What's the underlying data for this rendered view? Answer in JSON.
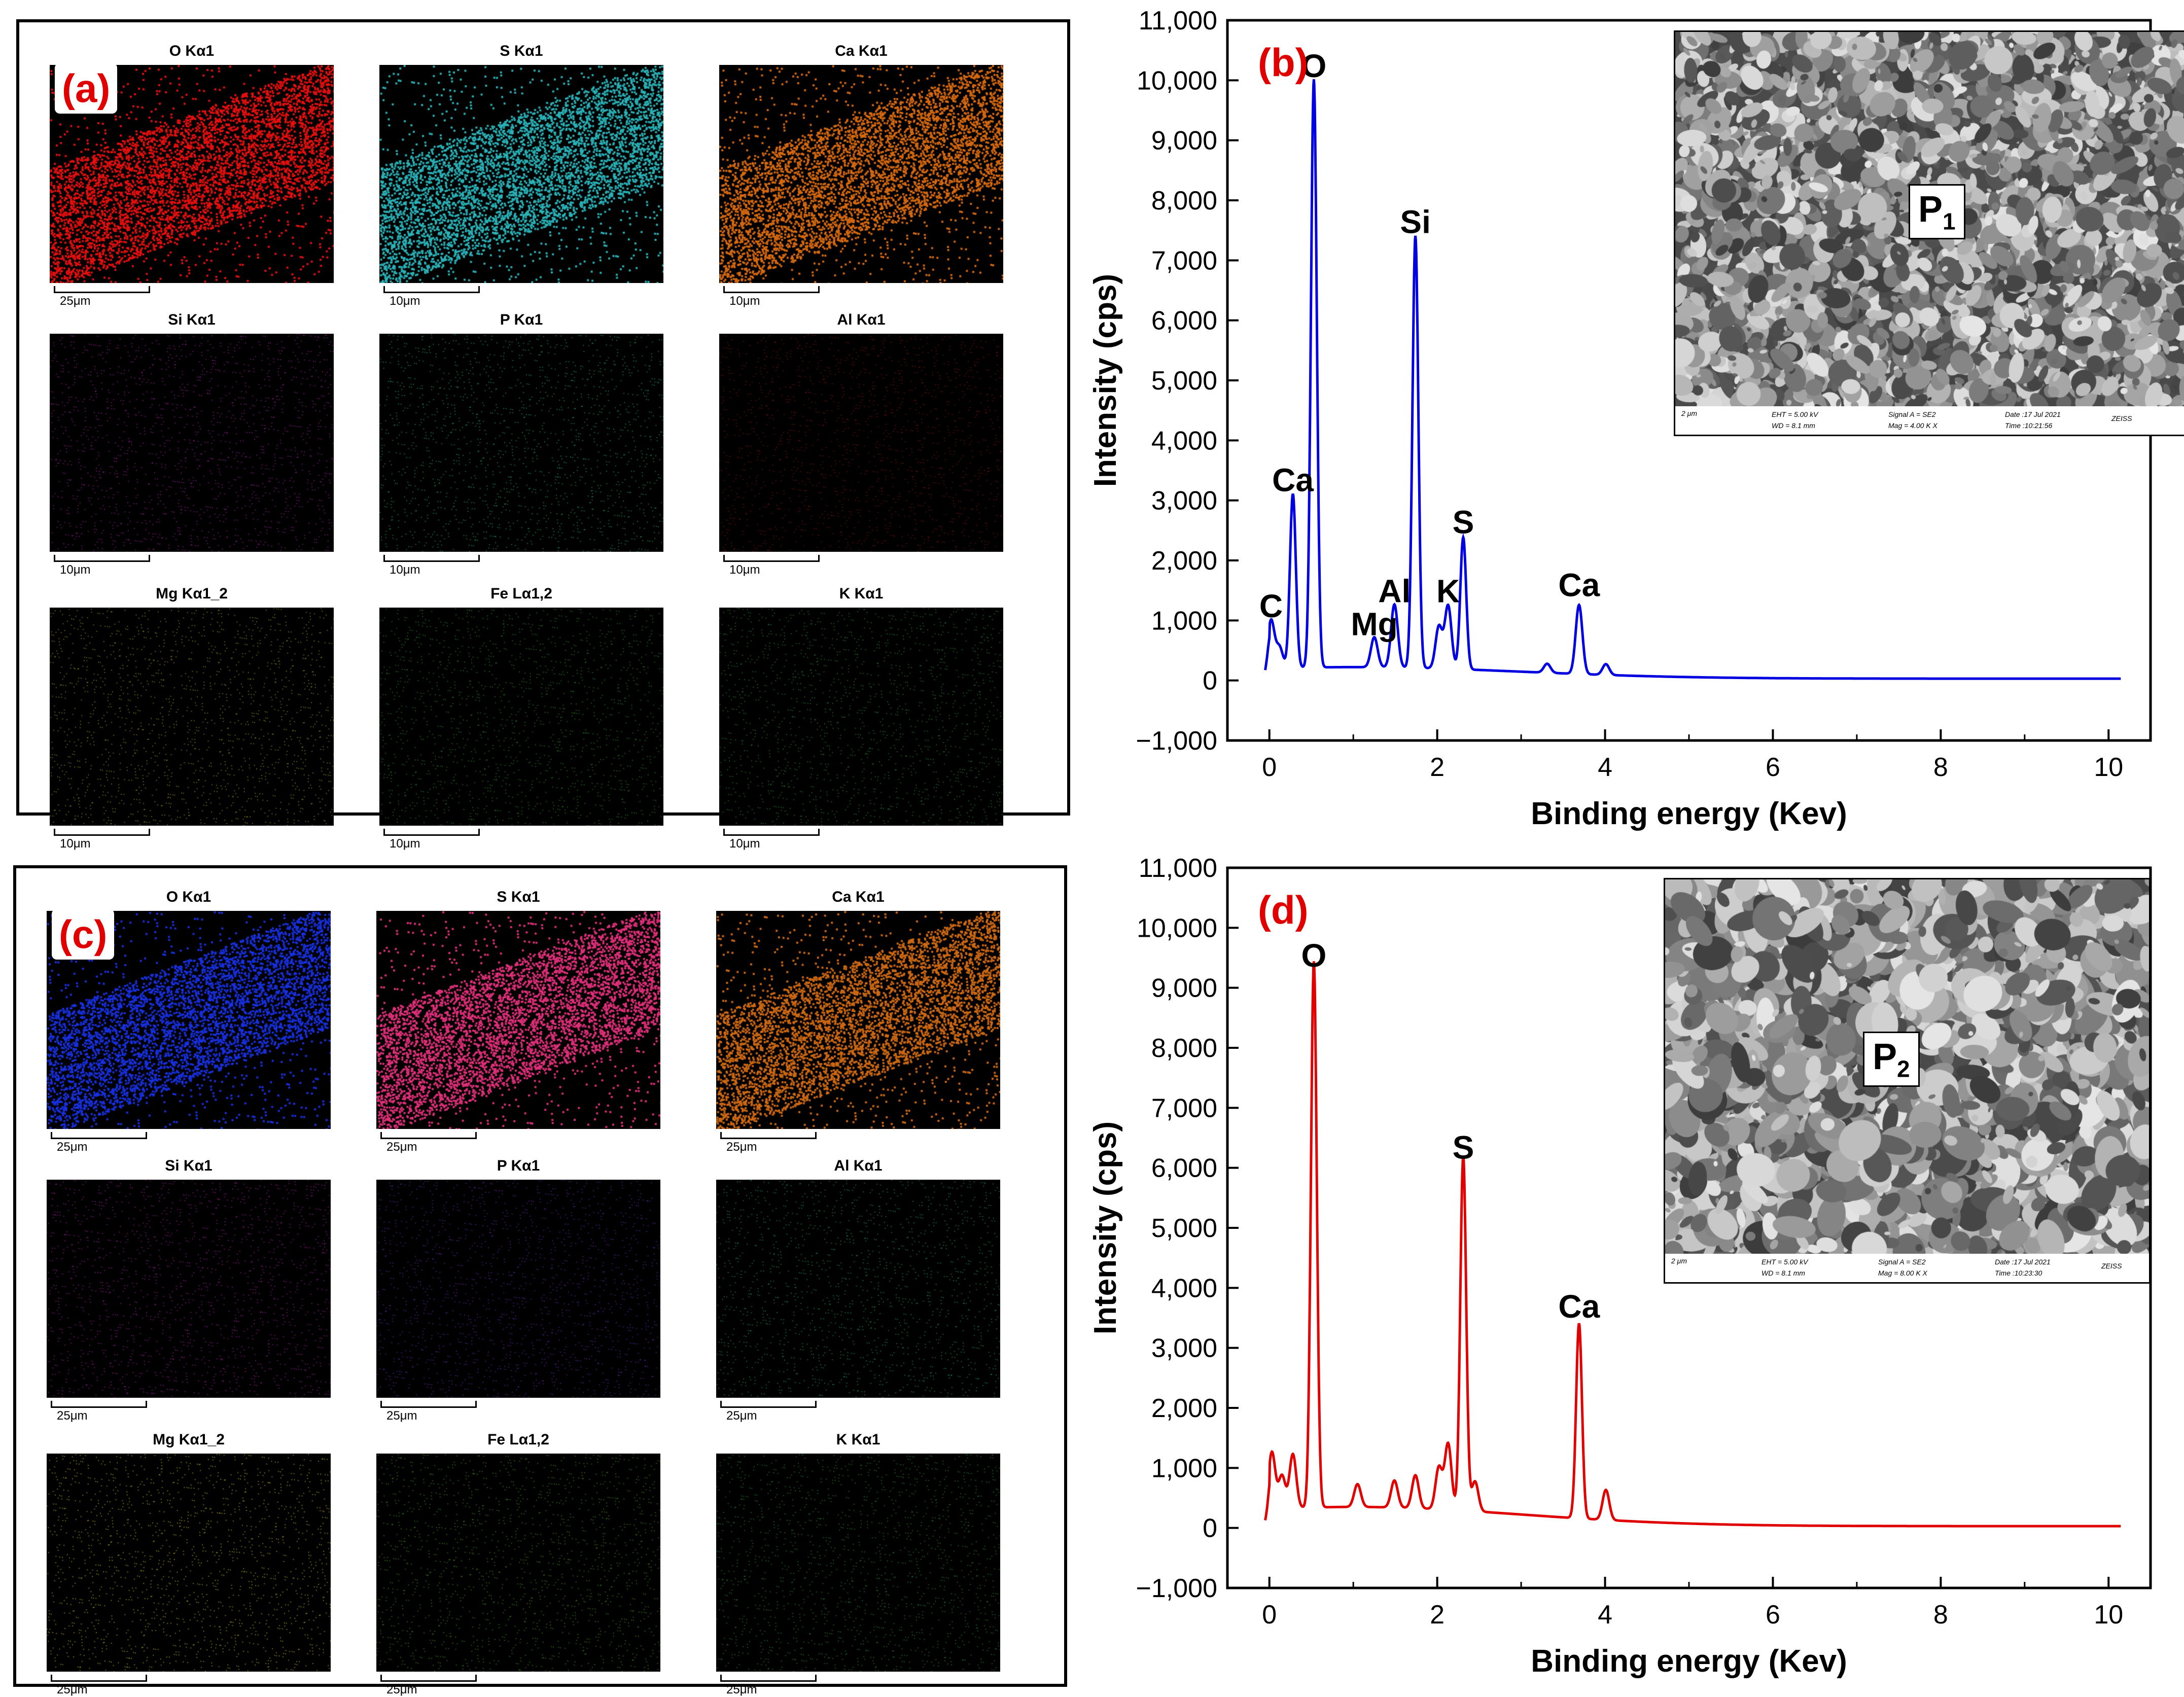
{
  "panels": {
    "a": {
      "label": "(a)",
      "tiles": [
        {
          "title": "O Kα1",
          "scale": "25μm",
          "color": "#e81010"
        },
        {
          "title": "S Kα1",
          "scale": "10μm",
          "color": "#2ab3b8"
        },
        {
          "title": "Ca Kα1",
          "scale": "10μm",
          "color": "#d86a10"
        },
        {
          "title": "Si Kα1",
          "scale": "10μm",
          "color": "#c020c0"
        },
        {
          "title": "P Kα1",
          "scale": "10μm",
          "color": "#20c080"
        },
        {
          "title": "Al Kα1",
          "scale": "10μm",
          "color": "#a01818"
        },
        {
          "title": "Mg Kα1_2",
          "scale": "10μm",
          "color": "#b8b020"
        },
        {
          "title": "Fe Lα1,2",
          "scale": "10μm",
          "color": "#30a030"
        },
        {
          "title": "K Kα1",
          "scale": "10μm",
          "color": "#30a040"
        }
      ]
    },
    "c": {
      "label": "(c)",
      "tiles": [
        {
          "title": "O Kα1",
          "scale": "25μm",
          "color": "#1830e0"
        },
        {
          "title": "S Kα1",
          "scale": "25μm",
          "color": "#e0307a"
        },
        {
          "title": "Ca Kα1",
          "scale": "25μm",
          "color": "#d06a14"
        },
        {
          "title": "Si Kα1",
          "scale": "25μm",
          "color": "#c020c0"
        },
        {
          "title": "P Kα1",
          "scale": "25μm",
          "color": "#7a30d0"
        },
        {
          "title": "Al Kα1",
          "scale": "25μm",
          "color": "#20b070"
        },
        {
          "title": "Mg Kα1_2",
          "scale": "25μm",
          "color": "#d8d020"
        },
        {
          "title": "Fe Lα1,2",
          "scale": "25μm",
          "color": "#50a820"
        },
        {
          "title": "K Kα1",
          "scale": "25μm",
          "color": "#30a040"
        }
      ]
    }
  },
  "chart_data": [
    {
      "type": "line",
      "panel_label": "(b)",
      "xlabel": "Binding energy (Kev)",
      "ylabel": "Intensity (cps)",
      "xlim": [
        -0.5,
        10.5
      ],
      "ylim": [
        -1000,
        11000
      ],
      "xticks": [
        0,
        2,
        4,
        6,
        8,
        10
      ],
      "yticks": [
        -1000,
        0,
        1000,
        2000,
        3000,
        4000,
        5000,
        6000,
        7000,
        8000,
        9000,
        10000,
        11000
      ],
      "ytick_labels": [
        "−1,000",
        "0",
        "1,000",
        "2,000",
        "3,000",
        "4,000",
        "5,000",
        "6,000",
        "7,000",
        "8,000",
        "9,000",
        "10,000",
        "11,000"
      ],
      "color": "#0000e0",
      "baseline": 120,
      "peaks": [
        {
          "x": 0.02,
          "y": 800,
          "label": "C"
        },
        {
          "x": 0.12,
          "y": 350
        },
        {
          "x": 0.28,
          "y": 2900,
          "label": "Ca"
        },
        {
          "x": 0.53,
          "y": 9800,
          "label": "O"
        },
        {
          "x": 1.25,
          "y": 500,
          "label": "Mg"
        },
        {
          "x": 1.49,
          "y": 1050,
          "label": "Al"
        },
        {
          "x": 1.74,
          "y": 7200,
          "label": "Si"
        },
        {
          "x": 2.02,
          "y": 700
        },
        {
          "x": 2.13,
          "y": 1050,
          "label": "K"
        },
        {
          "x": 2.31,
          "y": 2200,
          "label": "S"
        },
        {
          "x": 3.31,
          "y": 150
        },
        {
          "x": 3.69,
          "y": 1150,
          "label": "Ca"
        },
        {
          "x": 4.01,
          "y": 180
        }
      ],
      "sem": {
        "tag": "P",
        "tag_sub": "1",
        "scale": "2 μm",
        "eht": "EHT =  5.00 kV",
        "wd": "WD =  8.1 mm",
        "signal": "Signal A = SE2",
        "mag": "Mag =    4.00 K X",
        "date": "Date :17 Jul 2021",
        "time": "Time :10:21:56",
        "brand": "ZEISS"
      }
    },
    {
      "type": "line",
      "panel_label": "(d)",
      "xlabel": "Binding energy (Kev)",
      "ylabel": "Intensity (cps)",
      "xlim": [
        -0.5,
        10.5
      ],
      "ylim": [
        -1000,
        11000
      ],
      "xticks": [
        0,
        2,
        4,
        6,
        8,
        10
      ],
      "yticks": [
        -1000,
        0,
        1000,
        2000,
        3000,
        4000,
        5000,
        6000,
        7000,
        8000,
        9000,
        10000,
        11000
      ],
      "ytick_labels": [
        "−1,000",
        "0",
        "1,000",
        "2,000",
        "3,000",
        "4,000",
        "5,000",
        "6,000",
        "7,000",
        "8,000",
        "9,000",
        "10,000",
        "11,000"
      ],
      "color": "#e00000",
      "baseline": 200,
      "peaks": [
        {
          "x": 0.03,
          "y": 950
        },
        {
          "x": 0.15,
          "y": 550
        },
        {
          "x": 0.28,
          "y": 900
        },
        {
          "x": 0.53,
          "y": 9100,
          "label": "O"
        },
        {
          "x": 1.05,
          "y": 380
        },
        {
          "x": 1.49,
          "y": 450
        },
        {
          "x": 1.74,
          "y": 550
        },
        {
          "x": 2.02,
          "y": 700
        },
        {
          "x": 2.13,
          "y": 1100
        },
        {
          "x": 2.31,
          "y": 5900,
          "label": "S"
        },
        {
          "x": 2.45,
          "y": 500
        },
        {
          "x": 3.69,
          "y": 3250,
          "label": "Ca"
        },
        {
          "x": 4.01,
          "y": 500
        }
      ],
      "sem": {
        "tag": "P",
        "tag_sub": "2",
        "scale": "2 μm",
        "eht": "EHT =  5.00 kV",
        "wd": "WD =  8.1 mm",
        "signal": "Signal A = SE2",
        "mag": "Mag =    8.00 K X",
        "date": "Date :17 Jul 2021",
        "time": "Time :10:23:30",
        "brand": "ZEISS"
      }
    }
  ]
}
